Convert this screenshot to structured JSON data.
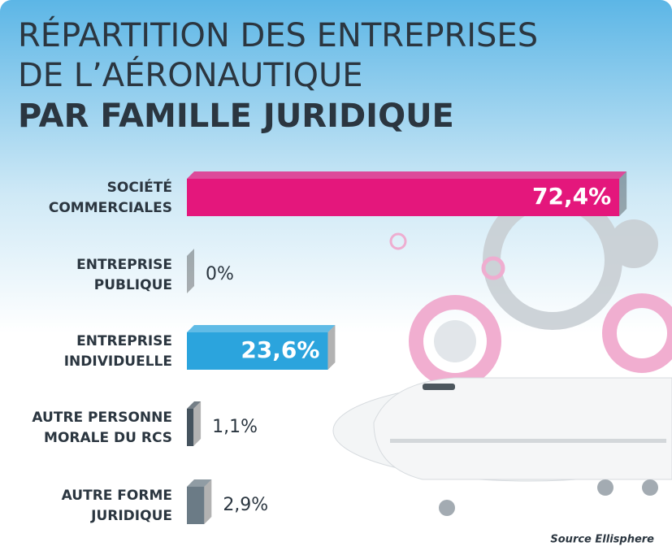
{
  "chart_data": {
    "type": "bar",
    "orientation": "horizontal",
    "title_lines": [
      "RÉPARTITION DES ENTREPRISES",
      "DE L’AÉRONAUTIQUE",
      "PAR FAMILLE JURIDIQUE"
    ],
    "categories": [
      [
        "SOCIÉTÉ",
        "COMMERCIALES"
      ],
      [
        "ENTREPRISE",
        "PUBLIQUE"
      ],
      [
        "ENTREPRISE",
        "INDIVIDUELLE"
      ],
      [
        "AUTRE PERSONNE",
        "MORALE DU RCS"
      ],
      [
        "AUTRE FORME",
        "JURIDIQUE"
      ]
    ],
    "values": [
      72.4,
      0,
      23.6,
      1.1,
      2.9
    ],
    "value_labels": [
      "72,4%",
      "0%",
      "23,6%",
      "1,1%",
      "2,9%"
    ],
    "colors": [
      "#e4177c",
      "#45535e",
      "#2ba4dd",
      "#45535e",
      "#6b7b86"
    ],
    "source": "Source Ellisphere"
  }
}
